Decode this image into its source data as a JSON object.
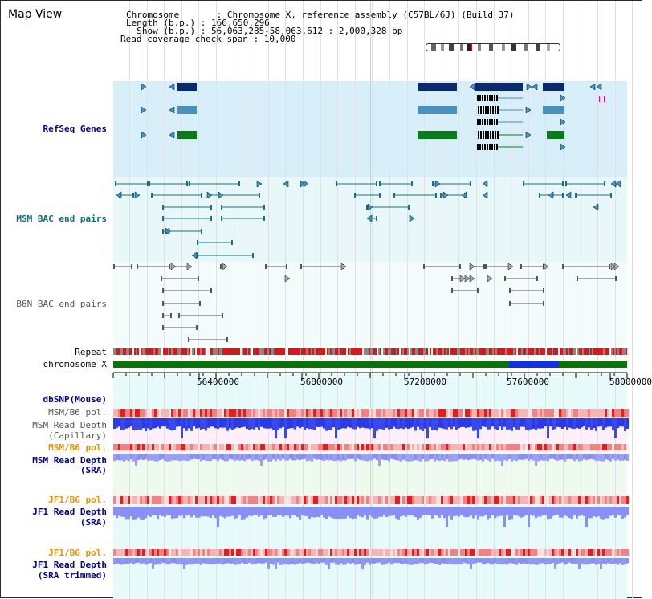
{
  "map_title": "Map View",
  "header": {
    "chromosome": "Chromosome       : Chromosome X, reference assembly (C57BL/6J) (Build 37)",
    "length": "Length (b.p.) : 166,650,296",
    "show": "  Show (b.p.) : 56,063,285-58,063,612 : 2,000,328 bp",
    "coverage": "Read coverage check span : 10,000"
  },
  "labels": {
    "refseq": "RefSeq Genes",
    "msm_bac": "MSM BAC end pairs",
    "b6n_bac": "B6N BAC end pairs",
    "repeat": "Repeat",
    "chromosome": "chromosome X",
    "dbsnp": "dbSNP(Mouse)",
    "msm_pol1": "MSM/B6 pol.",
    "msm_depth_cap_1": "MSM Read Depth",
    "msm_depth_cap_2": "(Capillary)",
    "msm_pol2": "MSM/B6 pol.",
    "msm_depth_sra_1": "MSM Read Depth",
    "msm_depth_sra_2": "(SRA)",
    "jf1_pol1": "JF1/B6 pol.",
    "jf1_depth_1": "JF1 Read Depth",
    "jf1_depth_2": "(SRA)",
    "jf1_pol2": "JF1/B6 pol.",
    "jf1_trim_1": "JF1 Read Depth",
    "jf1_trim_2": "(SRA trimmed)"
  },
  "axis_ticks": [
    "56400000",
    "56800000",
    "57200000",
    "57600000",
    "58000000"
  ],
  "colors": {
    "refseq_bg": "#d8eef8",
    "bac_bg": "#e8f8f8",
    "msm_sra_bg": "#eefaee",
    "capillary_bg": "#fdf0f8",
    "jf1_bg": "#e0fafa",
    "navy": "#0a2a6e",
    "steel": "#4a90bd",
    "green": "#0a7a1a",
    "teal": "#1a7088",
    "depth_blue": "#2a3ae8",
    "depth_sra": "#8a8ef5",
    "pol_red": "#ee3030"
  }
}
